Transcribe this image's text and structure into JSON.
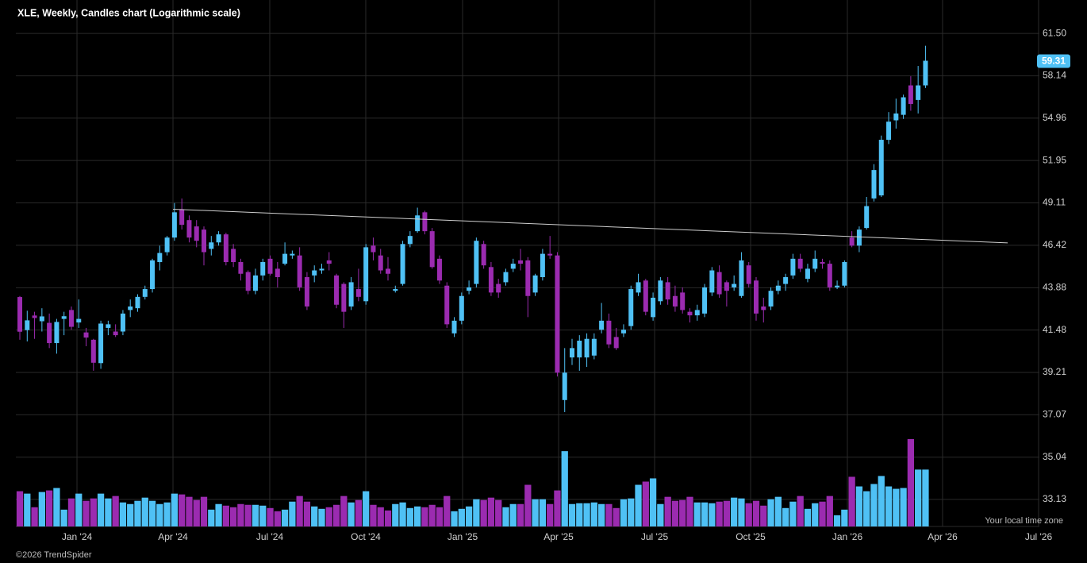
{
  "chart_data": {
    "type": "candlestick",
    "title": "XLE, Weekly, Candles chart (Logarithmic scale)",
    "footnote": "Your local time zone",
    "copyright": "©2026 TrendSpider",
    "log_scale": true,
    "grid": true,
    "up_color": "#4fc1f5",
    "down_color": "#9b2bb0",
    "ylim": [
      31.96,
      64.29
    ],
    "yticks": [
      33.13,
      35.04,
      37.07,
      39.21,
      41.48,
      43.88,
      46.42,
      49.11,
      51.95,
      54.96,
      58.14,
      {
        "value": 61.5,
        "label": "61.50"
      }
    ],
    "xlim": [
      -0.54,
      138.47
    ],
    "xticks": [
      {
        "value": 7.76,
        "label": "Jan '24"
      },
      {
        "value": 20.8,
        "label": "Apr '24"
      },
      {
        "value": 33.94,
        "label": "Jul '24"
      },
      {
        "value": 46.98,
        "label": "Oct '24"
      },
      {
        "value": 60.13,
        "label": "Jan '25"
      },
      {
        "value": 73.17,
        "label": "Apr '25"
      },
      {
        "value": 86.21,
        "label": "Jul '25"
      },
      {
        "value": 99.25,
        "label": "Oct '25"
      },
      {
        "value": 112.39,
        "label": "Jan '26"
      },
      {
        "value": 125.32,
        "label": "Apr '26"
      },
      {
        "value": 138.36,
        "label": "Jul '26"
      }
    ],
    "open": [
      43.34,
      41.48,
      42.29,
      41.97,
      41.88,
      40.77,
      42.1,
      42.6,
      41.9,
      41.35,
      40.95,
      39.7,
      41.6,
      41.4,
      41.4,
      42.6,
      42.7,
      43.35,
      43.8,
      45.4,
      46.0,
      46.9,
      48.7,
      48.0,
      47.6,
      47.4,
      46.2,
      46.6,
      47.1,
      46.2,
      45.4,
      44.8,
      43.7,
      44.6,
      45.6,
      45.0,
      45.3,
      45.8,
      45.8,
      44.5,
      44.6,
      44.9,
      45.5,
      44.6,
      44.1,
      42.8,
      43.8,
      43.1,
      46.4,
      45.8,
      45.0,
      43.7,
      44.1,
      46.5,
      47.3,
      48.5,
      47.3,
      45.6,
      44.0,
      41.3,
      42.0,
      43.7,
      44.1,
      46.5,
      45.1,
      44.1,
      44.2,
      45.0,
      45.5,
      45.5,
      43.6,
      44.5,
      45.9,
      45.8,
      37.8,
      40.0,
      40.0,
      40.0,
      40.1,
      41.5,
      42.0,
      41.1,
      41.3,
      41.7,
      43.6,
      44.3,
      42.2,
      43.1,
      44.2,
      43.4,
      43.6,
      42.5,
      42.3,
      42.4,
      43.6,
      44.8,
      44.2,
      43.9,
      43.4,
      45.2,
      44.3,
      42.8,
      42.8,
      43.7,
      44.1,
      44.6,
      45.6,
      44.4,
      45.0,
      45.4,
      45.3,
      43.9,
      44.0,
      46.9,
      46.4,
      47.5,
      49.4,
      49.6,
      53.4,
      54.8,
      55.2,
      57.4,
      56.3,
      57.4
    ],
    "high": [
      43.4,
      42.56,
      42.5,
      42.7,
      42.4,
      42.1,
      42.5,
      42.8,
      43.2,
      41.6,
      41.0,
      42.0,
      42.0,
      41.8,
      42.6,
      43.2,
      43.5,
      44.0,
      45.6,
      46.4,
      47.0,
      49.1,
      49.4,
      48.3,
      48.0,
      47.6,
      47.0,
      47.3,
      47.2,
      46.5,
      45.6,
      44.9,
      45.0,
      45.6,
      45.8,
      45.4,
      46.6,
      46.1,
      46.3,
      44.8,
      45.2,
      45.3,
      46.0,
      44.7,
      44.2,
      44.5,
      45.0,
      46.5,
      46.9,
      46.2,
      45.7,
      44.0,
      46.7,
      47.3,
      48.8,
      48.6,
      47.5,
      45.8,
      44.2,
      42.2,
      43.6,
      44.3,
      46.9,
      46.7,
      45.4,
      44.4,
      45.0,
      45.6,
      46.2,
      45.7,
      44.7,
      46.2,
      47.0,
      46.0,
      40.5,
      41.0,
      41.2,
      41.3,
      41.3,
      43.0,
      42.4,
      41.6,
      41.8,
      44.0,
      44.7,
      44.4,
      43.6,
      44.5,
      44.5,
      44.0,
      43.9,
      42.7,
      42.9,
      44.1,
      45.1,
      45.2,
      44.3,
      44.6,
      46.0,
      45.4,
      44.5,
      43.3,
      43.9,
      44.3,
      44.7,
      45.9,
      45.9,
      45.3,
      46.1,
      45.6,
      45.5,
      44.3,
      45.5,
      47.3,
      47.6,
      49.5,
      51.7,
      53.7,
      55.4,
      56.4,
      56.7,
      58.1,
      58.9,
      60.5
    ],
    "low": [
      40.95,
      40.86,
      41.0,
      41.4,
      40.5,
      40.2,
      41.2,
      41.5,
      41.6,
      40.6,
      39.3,
      39.4,
      41.2,
      41.1,
      41.2,
      42.2,
      42.5,
      43.2,
      43.6,
      44.9,
      45.8,
      46.7,
      47.4,
      46.6,
      46.3,
      45.2,
      45.8,
      46.4,
      45.2,
      45.1,
      44.3,
      43.5,
      43.5,
      44.3,
      44.6,
      43.9,
      45.2,
      45.6,
      43.7,
      42.6,
      44.2,
      44.7,
      44.9,
      42.7,
      41.6,
      42.6,
      43.1,
      42.9,
      45.5,
      44.7,
      44.3,
      43.6,
      44.0,
      46.3,
      47.2,
      47.1,
      45.0,
      44.1,
      41.6,
      41.1,
      41.8,
      43.5,
      43.9,
      45.0,
      43.4,
      43.3,
      44.0,
      44.8,
      44.9,
      42.2,
      43.4,
      44.3,
      45.6,
      39.0,
      37.2,
      39.6,
      39.3,
      39.5,
      39.9,
      41.3,
      40.5,
      40.4,
      41.1,
      41.5,
      43.4,
      42.3,
      42.0,
      42.9,
      42.9,
      42.5,
      42.4,
      41.9,
      42.0,
      42.2,
      43.4,
      43.3,
      42.8,
      43.7,
      43.3,
      43.9,
      42.0,
      41.9,
      42.6,
      43.5,
      43.7,
      44.4,
      44.8,
      44.2,
      44.8,
      45.0,
      43.7,
      43.8,
      43.9,
      46.3,
      46.0,
      47.4,
      49.2,
      49.5,
      53.1,
      54.2,
      54.9,
      55.5,
      55.3,
      57.2
    ],
    "close": [
      41.39,
      42.02,
      42.15,
      42.24,
      40.77,
      41.93,
      42.25,
      41.66,
      42.1,
      41.07,
      39.72,
      41.84,
      41.8,
      41.2,
      42.4,
      42.8,
      43.35,
      43.8,
      45.5,
      45.95,
      46.9,
      48.5,
      47.7,
      46.9,
      46.7,
      46.0,
      46.6,
      47.1,
      45.4,
      45.4,
      44.7,
      43.7,
      44.6,
      45.4,
      44.7,
      44.5,
      45.9,
      45.9,
      43.9,
      42.8,
      44.9,
      45.0,
      45.3,
      42.9,
      42.5,
      44.2,
      43.35,
      46.3,
      46.0,
      44.9,
      44.7,
      43.8,
      46.5,
      47.0,
      48.3,
      47.3,
      45.1,
      44.3,
      41.8,
      42.0,
      43.4,
      43.9,
      46.7,
      45.2,
      43.6,
      43.6,
      44.8,
      45.3,
      45.3,
      43.4,
      44.6,
      45.9,
      45.8,
      39.2,
      39.2,
      40.5,
      40.9,
      41.0,
      41.0,
      42.0,
      40.7,
      40.5,
      41.5,
      43.8,
      44.2,
      42.5,
      43.3,
      44.3,
      43.2,
      42.8,
      42.6,
      42.3,
      42.6,
      43.9,
      44.9,
      43.5,
      43.7,
      44.1,
      45.5,
      44.1,
      42.4,
      42.6,
      43.7,
      44.0,
      44.5,
      45.6,
      45.0,
      45.0,
      45.6,
      45.3,
      43.9,
      44.0,
      45.4,
      46.4,
      47.4,
      48.9,
      51.3,
      53.4,
      54.7,
      55.3,
      56.5,
      56.0,
      57.4,
      59.31
    ],
    "volume": [
      44,
      41,
      24,
      43,
      45,
      48,
      21,
      35,
      41,
      32,
      35,
      41,
      35,
      38,
      30,
      28,
      32,
      36,
      32,
      28,
      30,
      41,
      40,
      37,
      33,
      37,
      21,
      28,
      26,
      24,
      28,
      27,
      27,
      26,
      23,
      19,
      21,
      31,
      38,
      31,
      25,
      22,
      24,
      27,
      38,
      30,
      33,
      44,
      27,
      24,
      20,
      28,
      30,
      23,
      25,
      24,
      27,
      24,
      38,
      19,
      22,
      25,
      34,
      33,
      36,
      33,
      24,
      28,
      28,
      52,
      34,
      34,
      28,
      45,
      94,
      28,
      29,
      29,
      30,
      28,
      28,
      23,
      34,
      35,
      52,
      56,
      60,
      28,
      37,
      32,
      33,
      37,
      30,
      30,
      29,
      31,
      32,
      36,
      35,
      29,
      32,
      26,
      34,
      37,
      23,
      31,
      38,
      22,
      29,
      31,
      38,
      14,
      21,
      62,
      50,
      44,
      53,
      63,
      50,
      47,
      48,
      109,
      71,
      71
    ],
    "trendline": {
      "x": [
        20.8,
        134.16
      ],
      "y": [
        48.7,
        46.57
      ],
      "color": "#cfcfcf"
    }
  }
}
